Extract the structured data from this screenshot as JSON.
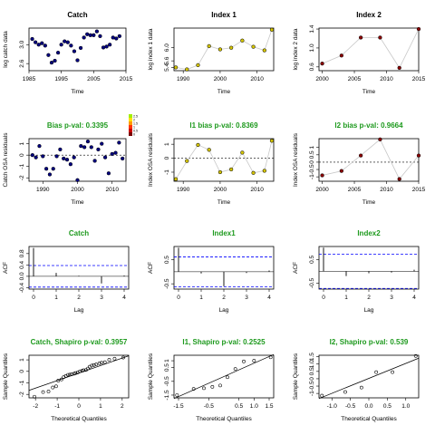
{
  "figure": {
    "colors": {
      "bias_title": "#1e9a1e",
      "std_title": "#000000",
      "catch_point": "#000080",
      "index1_point": "#d4c400",
      "index2_point": "#8b0000",
      "line": "#c8c8c8",
      "ref_line": "#0000ff"
    }
  },
  "chart_data": [
    {
      "type": "scatter",
      "panel": "catch-obs",
      "title": "Catch",
      "title_color": "std",
      "xlabel": "Time",
      "ylabel": "log catch data",
      "xlim": [
        1985,
        2015
      ],
      "ylim": [
        2.45,
        3.35
      ],
      "xticks": [
        1985,
        1995,
        2005,
        2015
      ],
      "xticklabels": [
        "1985",
        "1995",
        "2005",
        "2015"
      ],
      "yticks": [
        2.6,
        3.0
      ],
      "yticklabels": [
        "2.6",
        "3.0"
      ],
      "point_color": "#000080",
      "connect": false,
      "x": [
        1986,
        1987,
        1988,
        1989,
        1990,
        1991,
        1992,
        1993,
        1994,
        1995,
        1996,
        1997,
        1998,
        1999,
        2000,
        2001,
        2002,
        2003,
        2004,
        2005,
        2006,
        2007,
        2008,
        2009,
        2010,
        2011,
        2012,
        2013
      ],
      "y": [
        3.12,
        3.05,
        3.0,
        3.03,
        2.98,
        2.78,
        2.62,
        2.66,
        2.83,
        3.0,
        3.07,
        3.05,
        2.98,
        2.86,
        2.67,
        2.93,
        3.15,
        3.22,
        3.2,
        3.2,
        3.28,
        3.18,
        2.94,
        2.96,
        3.0,
        3.15,
        3.13,
        3.18
      ]
    },
    {
      "type": "scatter",
      "panel": "index1-obs",
      "title": "Index 1",
      "title_color": "std",
      "xlabel": "Time",
      "ylabel": "log index 1 data",
      "xlim": [
        1987.5,
        2014.5
      ],
      "ylim": [
        5.3,
        6.6
      ],
      "xticks": [
        1990,
        2000,
        2010
      ],
      "xticklabels": [
        "1990",
        "2000",
        "2010"
      ],
      "yticks": [
        5.4,
        5.6,
        6.0
      ],
      "yticklabels": [
        "5.4",
        "5.6",
        "6.0"
      ],
      "point_color": "#d4c400",
      "connect": true,
      "x": [
        1988,
        1991,
        1994,
        1997,
        2000,
        2003,
        2006,
        2009,
        2012,
        2014
      ],
      "y": [
        5.4,
        5.34,
        5.47,
        6.05,
        5.95,
        6.0,
        6.22,
        6.03,
        5.92,
        6.55
      ]
    },
    {
      "type": "scatter",
      "panel": "index2-obs",
      "title": "Index 2",
      "title_color": "std",
      "xlabel": "Time",
      "ylabel": "log index 2 data",
      "xlim": [
        1999.5,
        2015
      ],
      "ylim": [
        0.52,
        1.42
      ],
      "xticks": [
        2000,
        2005,
        2010,
        2015
      ],
      "xticklabels": [
        "2000",
        "2005",
        "2010",
        "2015"
      ],
      "yticks": [
        0.6,
        1.0,
        1.4
      ],
      "yticklabels": [
        "0.6",
        "1.0",
        "1.4"
      ],
      "point_color": "#8b0000",
      "connect": true,
      "x": [
        2000,
        2003,
        2006,
        2009,
        2012,
        2015
      ],
      "y": [
        0.67,
        0.84,
        1.22,
        1.22,
        0.58,
        1.4
      ]
    },
    {
      "type": "scatter",
      "panel": "catch-osa",
      "title": "Bias p-val: 0.3395",
      "title_color": "bias",
      "xlabel": "Time",
      "ylabel": "Catch OSA residuals",
      "xlim": [
        1986,
        2014
      ],
      "ylim": [
        -2.3,
        1.45
      ],
      "xticks": [
        1990,
        2000,
        2010
      ],
      "xticklabels": [
        "1990",
        "2000",
        "2010"
      ],
      "yticks": [
        -2,
        -1,
        0,
        1
      ],
      "yticklabels": [
        "-2",
        "-1",
        "0",
        "1"
      ],
      "point_color": "#000080",
      "connect": false,
      "residual_colors": true,
      "legend": [
        "2.5",
        "2",
        "1.5",
        "1",
        "0.5",
        "0"
      ],
      "x": [
        1987,
        1988,
        1989,
        1990,
        1991,
        1992,
        1993,
        1994,
        1995,
        1996,
        1997,
        1998,
        1999,
        2000,
        2001,
        2002,
        2003,
        2004,
        2005,
        2006,
        2007,
        2008,
        2009,
        2010,
        2011,
        2012,
        2013
      ],
      "y": [
        0.0,
        -0.2,
        0.8,
        -0.1,
        -1.2,
        -1.7,
        -1.2,
        -0.1,
        0.5,
        -0.3,
        -0.4,
        -0.8,
        -0.2,
        -2.2,
        0.8,
        0.7,
        1.2,
        0.7,
        -0.5,
        0.5,
        1.0,
        -0.2,
        -1.6,
        0.1,
        0.2,
        1.1,
        -0.3
      ]
    },
    {
      "type": "scatter",
      "panel": "index1-osa",
      "title": "I1 bias p-val: 0.8369",
      "title_color": "bias",
      "xlabel": "Time",
      "ylabel": "Index OSA residuals",
      "xlim": [
        1987.5,
        2014.5
      ],
      "ylim": [
        -1.65,
        1.4
      ],
      "xticks": [
        1990,
        2000,
        2010
      ],
      "xticklabels": [
        "1990",
        "2000",
        "2010"
      ],
      "yticks": [
        -1,
        0,
        1
      ],
      "yticklabels": [
        "-1",
        "0",
        "1"
      ],
      "point_color": "#d4c400",
      "connect": true,
      "x": [
        1988,
        1991,
        1994,
        1997,
        2000,
        2003,
        2006,
        2009,
        2012,
        2014
      ],
      "y": [
        -1.5,
        -0.2,
        0.95,
        0.6,
        -1.0,
        -0.8,
        0.4,
        -1.05,
        -0.9,
        1.25
      ]
    },
    {
      "type": "scatter",
      "panel": "index2-osa",
      "title": "I2 bias p-val: 0.9664",
      "title_color": "bias",
      "xlabel": "Time",
      "ylabel": "Index OSA residuals",
      "xlim": [
        1999.5,
        2015
      ],
      "ylim": [
        -1.3,
        1.6
      ],
      "xticks": [
        2000,
        2005,
        2010,
        2015
      ],
      "xticklabels": [
        "2000",
        "2005",
        "2010",
        "2015"
      ],
      "yticks": [
        -1,
        -0.5,
        0,
        0.5,
        1
      ],
      "yticklabels": [
        "-1",
        "-0.5",
        "0",
        "0.5",
        "1"
      ],
      "point_color": "#8b0000",
      "connect": true,
      "x": [
        2000,
        2003,
        2006,
        2009,
        2012,
        2015
      ],
      "y": [
        -0.9,
        -0.6,
        0.45,
        1.55,
        -1.15,
        0.45
      ]
    },
    {
      "type": "bar",
      "panel": "catch-acf",
      "title": "Catch",
      "title_color": "bias",
      "xlabel": "Lag",
      "ylabel": "ACF",
      "xlim": [
        -0.2,
        4.2
      ],
      "ylim": [
        -0.45,
        1.05
      ],
      "xticks": [
        0,
        1,
        2,
        3,
        4
      ],
      "xticklabels": [
        "0",
        "1",
        "2",
        "3",
        "4"
      ],
      "yticks": [
        -0.4,
        0.0,
        0.4,
        0.8
      ],
      "yticklabels": [
        "-0.4",
        "0.0",
        "0.4",
        "0.8"
      ],
      "lags": [
        0,
        1,
        2,
        3,
        4
      ],
      "acf": [
        1.0,
        0.12,
        0.02,
        -0.25,
        0.03
      ],
      "ci": 0.38
    },
    {
      "type": "bar",
      "panel": "index1-acf",
      "title": "Index1",
      "title_color": "bias",
      "xlabel": "Lag",
      "ylabel": "ACF",
      "xlim": [
        -0.2,
        4.2
      ],
      "ylim": [
        -0.72,
        1.05
      ],
      "xticks": [
        0,
        1,
        2,
        3,
        4
      ],
      "xticklabels": [
        "0",
        "1",
        "2",
        "3",
        "4"
      ],
      "yticks": [
        -0.5,
        0.5
      ],
      "yticklabels": [
        "-0.5",
        "0.5"
      ],
      "lags": [
        0,
        1,
        2,
        3,
        4
      ],
      "acf": [
        1.0,
        -0.07,
        -0.6,
        -0.05,
        0.05
      ],
      "ci": 0.62
    },
    {
      "type": "bar",
      "panel": "index2-acf",
      "title": "Index2",
      "title_color": "bias",
      "xlabel": "Lag",
      "ylabel": "ACF",
      "xlim": [
        -0.2,
        4.2
      ],
      "ylim": [
        -0.75,
        1.05
      ],
      "xticks": [
        0,
        1,
        2,
        3,
        4
      ],
      "xticklabels": [
        "0",
        "1",
        "2",
        "3",
        "4"
      ],
      "yticks": [
        -0.5,
        0.5
      ],
      "yticklabels": [
        "-0.5",
        "0.5"
      ],
      "lags": [
        0,
        1,
        2,
        3,
        4
      ],
      "acf": [
        1.0,
        -0.2,
        -0.08,
        -0.05,
        0.07
      ],
      "ci": 0.72
    },
    {
      "type": "scatter",
      "panel": "catch-qq",
      "title": "Catch, Shapiro p-val: 0.3957",
      "title_color": "bias",
      "xlabel": "Theoretical Quantiles",
      "ylabel": "Sample Quantiles",
      "xlim": [
        -2.3,
        2.3
      ],
      "ylim": [
        -2.3,
        1.4
      ],
      "xticks": [
        -2,
        -1,
        0,
        1,
        2
      ],
      "xticklabels": [
        "-2",
        "-1",
        "0",
        "1",
        "2"
      ],
      "yticks": [
        -2,
        -1,
        0,
        1
      ],
      "yticklabels": [
        "-2",
        "-1",
        "0",
        "1"
      ],
      "qqline": [
        [
          -2.3,
          -1.65
        ],
        [
          2.3,
          1.35
        ]
      ],
      "x": [
        -2.05,
        -1.65,
        -1.4,
        -1.2,
        -1.05,
        -0.95,
        -0.8,
        -0.7,
        -0.6,
        -0.5,
        -0.42,
        -0.33,
        -0.22,
        -0.15,
        -0.05,
        0.05,
        0.15,
        0.22,
        0.33,
        0.42,
        0.5,
        0.6,
        0.7,
        0.8,
        0.95,
        1.05,
        1.2,
        1.4,
        1.65,
        2.05
      ],
      "y": [
        -2.2,
        -1.8,
        -1.75,
        -1.4,
        -1.3,
        -0.8,
        -0.7,
        -0.5,
        -0.4,
        -0.3,
        -0.28,
        -0.25,
        -0.2,
        -0.15,
        -0.1,
        0.0,
        0.05,
        0.1,
        0.12,
        0.25,
        0.4,
        0.5,
        0.55,
        0.6,
        0.7,
        0.75,
        0.8,
        1.0,
        1.1,
        1.2
      ]
    },
    {
      "type": "scatter",
      "panel": "index1-qq",
      "title": "I1, Shapiro p-val: 0.2525",
      "title_color": "bias",
      "xlabel": "Theoretical Quantiles",
      "ylabel": "Sample Quantiles",
      "xlim": [
        -1.65,
        1.65
      ],
      "ylim": [
        -1.7,
        1.4
      ],
      "xticks": [
        -1.5,
        -0.5,
        0.5,
        1.0,
        1.5
      ],
      "xticklabels": [
        "-1.5",
        "-0.5",
        "0.5",
        "1.0",
        "1.5"
      ],
      "yticks": [
        -1.5,
        -0.5,
        0.5,
        1.0
      ],
      "yticklabels": [
        "-1.5",
        "-0.5",
        "0.5",
        "1"
      ],
      "qqline": [
        [
          -1.65,
          -1.75
        ],
        [
          1.65,
          1.45
        ]
      ],
      "x": [
        -1.55,
        -1.0,
        -0.66,
        -0.38,
        -0.12,
        0.12,
        0.38,
        0.66,
        1.0,
        1.55
      ],
      "y": [
        -1.5,
        -1.05,
        -1.0,
        -0.9,
        -0.8,
        -0.2,
        0.4,
        0.95,
        1.0,
        1.25
      ]
    },
    {
      "type": "scatter",
      "panel": "index2-qq",
      "title": "I2, Shapiro p-val: 0.539",
      "title_color": "bias",
      "xlabel": "Theoretical Quantiles",
      "ylabel": "Sample Quantiles",
      "xlim": [
        -1.35,
        1.35
      ],
      "ylim": [
        -1.3,
        1.6
      ],
      "xticks": [
        -1.0,
        -0.5,
        0.0,
        0.5,
        1.0
      ],
      "xticklabels": [
        "-1.0",
        "-0.5",
        "0.0",
        "0.5",
        "1.0"
      ],
      "yticks": [
        -1,
        -0.5,
        0,
        0.5,
        1.0,
        1.5
      ],
      "yticklabels": [
        "-1",
        "-0.5",
        "0",
        "0.5",
        "1.0",
        "1.5"
      ],
      "qqline": [
        [
          -1.35,
          -1.35
        ],
        [
          1.35,
          1.4
        ]
      ],
      "x": [
        -1.27,
        -0.64,
        -0.2,
        0.2,
        0.64,
        1.27
      ],
      "y": [
        -1.15,
        -0.9,
        -0.6,
        0.45,
        0.45,
        1.55
      ]
    }
  ]
}
